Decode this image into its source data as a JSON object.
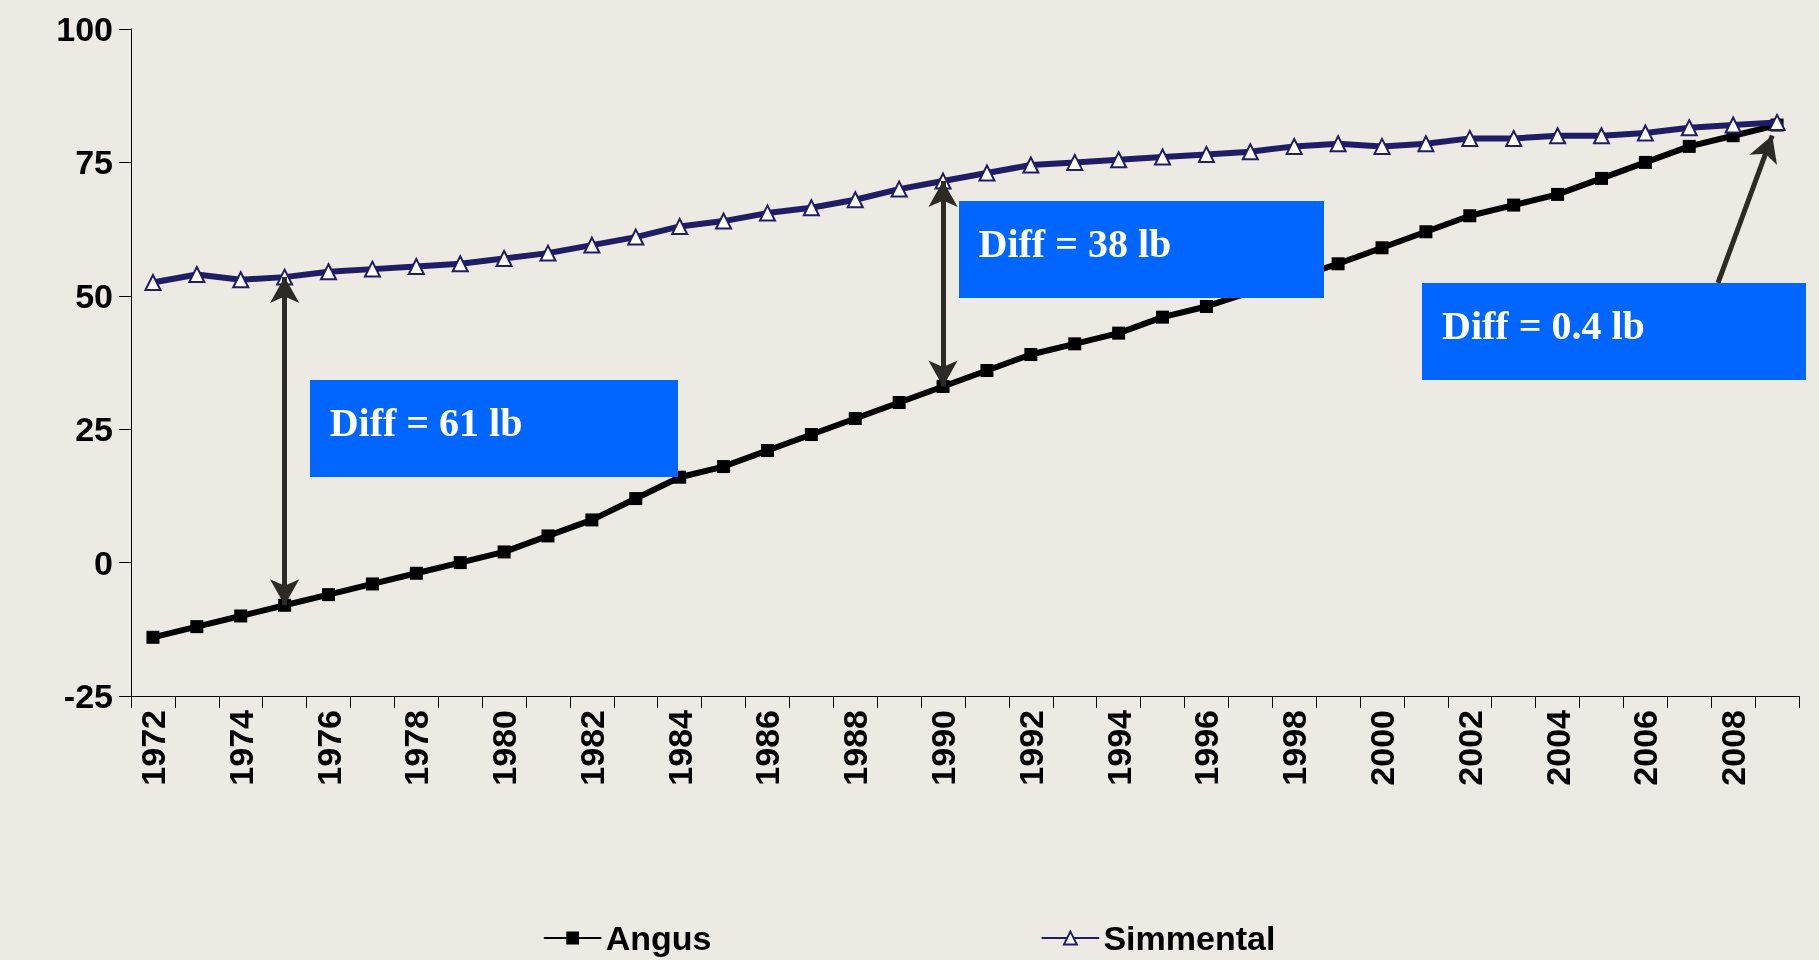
{
  "chart_data": {
    "type": "line",
    "categories": [
      "1972",
      null,
      "1974",
      null,
      "1976",
      null,
      "1978",
      null,
      "1980",
      null,
      "1982",
      null,
      "1984",
      null,
      "1986",
      null,
      "1988",
      null,
      "1990",
      null,
      "1992",
      null,
      "1994",
      null,
      "1996",
      null,
      "1998",
      null,
      "2000",
      null,
      "2002",
      null,
      "2004",
      null,
      "2006",
      null,
      "2008",
      null
    ],
    "series": [
      {
        "name": "Angus",
        "color": "#000000",
        "marker": "square",
        "values": [
          -14,
          -12,
          -10,
          -8,
          -6,
          -4,
          -2,
          0,
          2,
          5,
          8,
          12,
          16,
          18,
          21,
          24,
          27,
          30,
          33,
          36,
          39,
          41,
          43,
          46,
          48,
          null,
          null,
          56,
          59,
          62,
          65,
          67,
          69,
          72,
          75,
          78,
          80,
          82
        ]
      },
      {
        "name": "Simmental",
        "color": "#1f1d66",
        "marker": "triangle",
        "values": [
          52.5,
          54,
          53,
          53.5,
          54.5,
          55,
          55.5,
          56,
          57,
          58,
          59.5,
          61,
          63,
          64,
          65.5,
          66.5,
          68,
          70,
          71.5,
          73,
          74.5,
          75,
          75.5,
          76,
          76.5,
          77,
          78,
          78.5,
          78,
          78.5,
          79.5,
          79.5,
          80,
          80,
          80.5,
          81.5,
          82,
          82.5
        ]
      }
    ],
    "ylim": [
      -25,
      100
    ],
    "yticks": [
      -25,
      0,
      25,
      50,
      75,
      100
    ],
    "grid": false,
    "legend": "bottom",
    "annotations": [
      "Diff = 61 lb",
      "Diff = 38 lb",
      "Diff = 0.4 lb"
    ]
  }
}
